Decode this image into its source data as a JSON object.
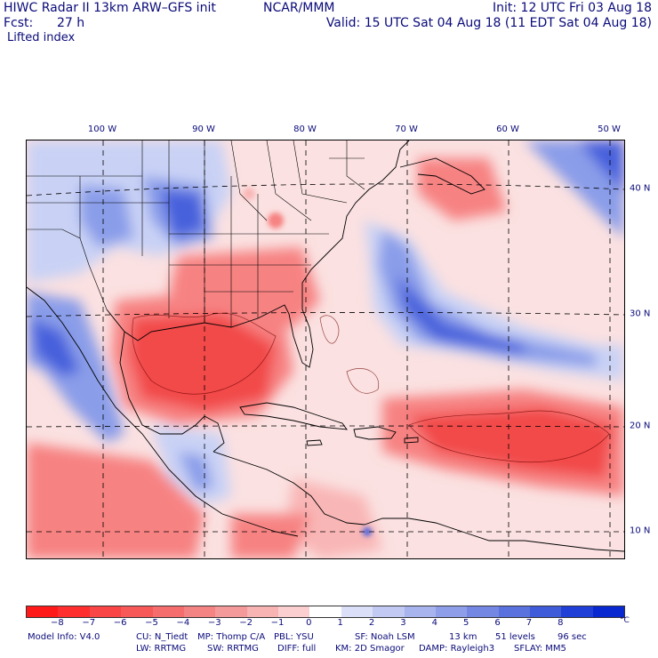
{
  "header": {
    "model": "HIWC Radar II 13km ARW–GFS init",
    "org": "NCAR/MMM",
    "init": "Init: 12 UTC Fri 03 Aug 18",
    "fcst_label": "Fcst:",
    "fcst_value": "27 h",
    "valid": "Valid: 15 UTC Sat 04 Aug 18 (11 EDT Sat 04 Aug 18)",
    "field": "Lifted index"
  },
  "map": {
    "lon_labels": [
      "100 W",
      "90 W",
      "80 W",
      "70 W",
      "60 W",
      "50 W"
    ],
    "lat_labels": [
      "40 N",
      "30 N",
      "20 N",
      "10 N"
    ],
    "colors": {
      "frame_bg": "#fbe1e1",
      "strong_neg": "#f24848",
      "mid_neg": "#f78282",
      "weak_neg": "#f9b6b6",
      "weak_pos": "#c9d2f5",
      "mid_pos": "#8a9de9",
      "strong_pos": "#4760dc",
      "border": "#000000"
    }
  },
  "colorbar": {
    "ticks": [
      "−8",
      "−7",
      "−6",
      "−5",
      "−4",
      "−3",
      "−2",
      "−1",
      "0",
      "1",
      "2",
      "3",
      "4",
      "5",
      "6",
      "7",
      "8"
    ],
    "unit": "°C",
    "colors": [
      "#ff1a1a",
      "#ff2e2e",
      "#f94545",
      "#f75858",
      "#f56d6d",
      "#f48383",
      "#f59a9a",
      "#f8b3b3",
      "#fbcfcf",
      "#ffffff",
      "#dbe0f8",
      "#c2caf3",
      "#a8b4ee",
      "#8e9ee8",
      "#7488e3",
      "#5a72de",
      "#3f5bd9",
      "#1f3fd6",
      "#0a28d0"
    ]
  },
  "footer": {
    "line1": {
      "model_info": "Model Info: V4.0",
      "cu": "CU: N_Tiedt",
      "mp": "MP: Thomp C/A",
      "pbl": "PBL: YSU",
      "sf": "SF: Noah LSM",
      "res": "13 km",
      "levels": "51 levels",
      "dt": "96 sec"
    },
    "line2": {
      "lw": "LW: RRTMG",
      "sw": "SW: RRTMG",
      "diff": "DIFF: full",
      "km": "KM: 2D Smagor",
      "damp": "DAMP: Rayleigh3",
      "sflay": "SFLAY: MM5"
    }
  }
}
